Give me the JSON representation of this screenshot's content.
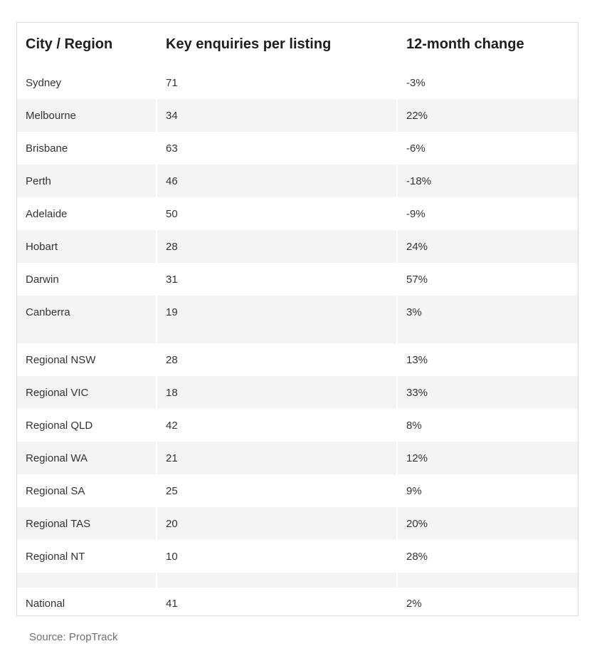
{
  "table": {
    "headers": [
      "City / Region",
      "Key enquiries per listing",
      "12-month change"
    ],
    "capitals": [
      [
        "Sydney",
        "71",
        "-3%"
      ],
      [
        "Melbourne",
        "34",
        "22%"
      ],
      [
        "Brisbane",
        "63",
        "-6%"
      ],
      [
        "Perth",
        "46",
        "-18%"
      ],
      [
        "Adelaide",
        "50",
        "-9%"
      ],
      [
        "Hobart",
        "28",
        "24%"
      ],
      [
        "Darwin",
        "31",
        "57%"
      ],
      [
        "Canberra",
        "19",
        "3%"
      ]
    ],
    "regional": [
      [
        "Regional NSW",
        "28",
        "13%"
      ],
      [
        "Regional VIC",
        "18",
        "33%"
      ],
      [
        "Regional QLD",
        "42",
        "8%"
      ],
      [
        "Regional WA",
        "21",
        "12%"
      ],
      [
        "Regional SA",
        "25",
        "9%"
      ],
      [
        "Regional TAS",
        "20",
        "20%"
      ],
      [
        "Regional NT",
        "10",
        "28%"
      ]
    ],
    "national": [
      [
        "National",
        "41",
        "2%"
      ]
    ]
  },
  "source": "Source: PropTrack"
}
